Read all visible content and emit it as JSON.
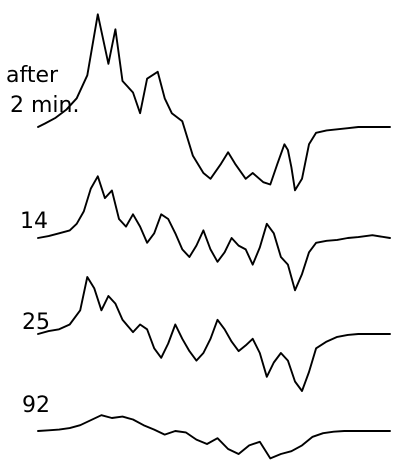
{
  "colors": {
    "trace": "#000000",
    "text": "#000000",
    "background": "#ffffff"
  },
  "chart_data": {
    "type": "line",
    "title": "",
    "xlabel": "",
    "ylabel": "",
    "grid": false,
    "legend": "none",
    "x_range": [
      0,
      100
    ],
    "y_range": [
      -60,
      100
    ],
    "series": [
      {
        "label_lines": [
          "after",
          "2 min."
        ],
        "x": [
          0,
          2,
          5,
          8,
          11,
          14,
          17,
          20,
          22,
          24,
          27,
          29,
          31,
          34,
          36,
          38,
          41,
          44,
          47,
          49,
          52,
          54,
          56,
          59,
          61,
          64,
          66,
          68,
          70,
          71,
          72,
          73,
          75,
          77,
          79,
          82,
          85,
          88,
          91,
          95,
          100
        ],
        "y": [
          0,
          3,
          8,
          15,
          25,
          45,
          98,
          55,
          85,
          40,
          30,
          12,
          42,
          48,
          25,
          12,
          5,
          -25,
          -40,
          -45,
          -32,
          -22,
          -32,
          -45,
          -40,
          -48,
          -50,
          -32,
          -15,
          -20,
          -35,
          -55,
          -45,
          -15,
          -5,
          -3,
          -2,
          -1,
          0,
          0,
          0
        ]
      },
      {
        "label": "14",
        "x": [
          0,
          3,
          6,
          9,
          11,
          13,
          15,
          17,
          19,
          21,
          23,
          25,
          27,
          29,
          31,
          33,
          35,
          37,
          39,
          41,
          43,
          45,
          47,
          49,
          51,
          53,
          55,
          57,
          59,
          61,
          63,
          65,
          67,
          69,
          71,
          73,
          75,
          77,
          79,
          82,
          85,
          88,
          91,
          95,
          100
        ],
        "y": [
          0,
          2,
          5,
          8,
          15,
          28,
          52,
          65,
          42,
          50,
          20,
          12,
          25,
          12,
          -5,
          5,
          25,
          20,
          5,
          -12,
          -20,
          -8,
          8,
          -12,
          -25,
          -15,
          0,
          -8,
          -12,
          -28,
          -10,
          15,
          5,
          -20,
          -28,
          -55,
          -38,
          -15,
          -5,
          -3,
          -2,
          0,
          1,
          3,
          0
        ]
      },
      {
        "label": "25",
        "x": [
          0,
          3,
          6,
          9,
          12,
          14,
          16,
          18,
          20,
          22,
          24,
          27,
          29,
          31,
          33,
          35,
          37,
          39,
          41,
          43,
          45,
          47,
          49,
          51,
          53,
          55,
          57,
          59,
          61,
          63,
          65,
          67,
          69,
          71,
          73,
          75,
          77,
          79,
          82,
          85,
          88,
          91,
          95,
          100
        ],
        "y": [
          0,
          3,
          5,
          10,
          25,
          60,
          48,
          25,
          40,
          32,
          15,
          2,
          10,
          5,
          -15,
          -25,
          -10,
          10,
          -5,
          -18,
          -28,
          -20,
          -5,
          15,
          5,
          -8,
          -18,
          -12,
          -5,
          -20,
          -45,
          -30,
          -20,
          -28,
          -50,
          -60,
          -40,
          -15,
          -8,
          -3,
          -1,
          0,
          0,
          0
        ]
      },
      {
        "label": "92",
        "x": [
          0,
          3,
          6,
          9,
          12,
          15,
          18,
          21,
          24,
          27,
          30,
          33,
          36,
          39,
          42,
          45,
          48,
          51,
          54,
          57,
          60,
          63,
          66,
          69,
          72,
          75,
          78,
          81,
          84,
          87,
          90,
          95,
          100
        ],
        "y": [
          0,
          1,
          2,
          4,
          8,
          15,
          22,
          18,
          20,
          16,
          8,
          2,
          -5,
          0,
          -2,
          -12,
          -18,
          -10,
          -25,
          -32,
          -20,
          -15,
          -38,
          -32,
          -28,
          -20,
          -8,
          -3,
          -1,
          0,
          0,
          0,
          0
        ]
      }
    ]
  }
}
